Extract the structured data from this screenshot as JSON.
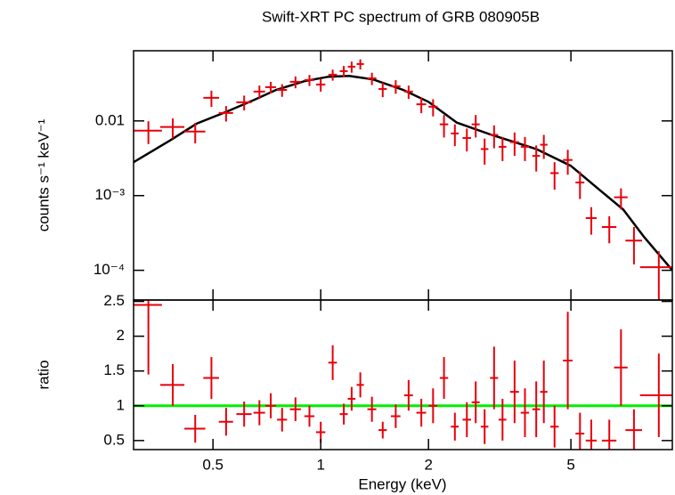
{
  "chart_data": [
    {
      "type": "errorbar",
      "title": "Swift-XRT PC spectrum of GRB 080905B",
      "ylabel": "counts s⁻¹ keV⁻¹",
      "log_x": true,
      "log_y": true,
      "xlim": [
        0.3,
        9.6
      ],
      "ylim": [
        4e-05,
        0.087
      ],
      "yticks": [
        0.01,
        {
          "value": 0.001,
          "label": "10⁻³"
        },
        {
          "value": 0.0001,
          "label": "10⁻⁴"
        }
      ],
      "series": [
        {
          "color": "#e8000b",
          "x": [
            0.33,
            0.386,
            0.446,
            0.495,
            0.544,
            0.611,
            0.674,
            0.725,
            0.78,
            0.85,
            0.93,
            1.0,
            1.08,
            1.16,
            1.22,
            1.29,
            1.39,
            1.49,
            1.62,
            1.76,
            1.91,
            2.06,
            2.21,
            2.37,
            2.56,
            2.71,
            2.87,
            3.05,
            3.22,
            3.48,
            3.72,
            4.0,
            4.2,
            4.5,
            4.9,
            5.3,
            5.7,
            6.4,
            6.9,
            7.5,
            8.8
          ],
          "xerr": [
            0.03,
            0.03,
            0.03,
            0.025,
            0.025,
            0.03,
            0.025,
            0.025,
            0.025,
            0.03,
            0.03,
            0.03,
            0.03,
            0.03,
            0.03,
            0.03,
            0.04,
            0.04,
            0.05,
            0.05,
            0.06,
            0.06,
            0.06,
            0.06,
            0.07,
            0.07,
            0.07,
            0.08,
            0.08,
            0.1,
            0.1,
            0.1,
            0.1,
            0.12,
            0.15,
            0.15,
            0.2,
            0.3,
            0.3,
            0.4,
            1.0
          ],
          "values": [
            0.0074,
            0.0083,
            0.0072,
            0.0204,
            0.0128,
            0.0178,
            0.0247,
            0.0283,
            0.026,
            0.0334,
            0.0353,
            0.0307,
            0.0416,
            0.0464,
            0.0532,
            0.0578,
            0.0372,
            0.0268,
            0.0291,
            0.0247,
            0.0167,
            0.0155,
            0.009,
            0.0068,
            0.0059,
            0.009,
            0.0042,
            0.0065,
            0.0045,
            0.0052,
            0.0045,
            0.0034,
            0.0048,
            0.002,
            0.003,
            0.0015,
            0.0005,
            0.00038,
            0.00095,
            0.00025,
            0.00011
          ],
          "yerr": [
            0.0025,
            0.0025,
            0.0022,
            0.005,
            0.003,
            0.004,
            0.005,
            0.005,
            0.005,
            0.006,
            0.006,
            0.006,
            0.007,
            0.008,
            0.009,
            0.009,
            0.007,
            0.006,
            0.006,
            0.005,
            0.004,
            0.004,
            0.003,
            0.0022,
            0.002,
            0.003,
            0.0016,
            0.0022,
            0.0016,
            0.0018,
            0.0016,
            0.0013,
            0.0017,
            0.0008,
            0.0011,
            0.0006,
            0.0002,
            0.00015,
            0.0003,
            0.00013,
            7e-05
          ]
        }
      ],
      "model": {
        "color": "#000000",
        "x": [
          0.3,
          0.38,
          0.45,
          0.55,
          0.65,
          0.75,
          0.9,
          1.05,
          1.2,
          1.4,
          1.7,
          2.0,
          2.4,
          3.0,
          4.0,
          5.0,
          6.0,
          7.0,
          8.0,
          9.6
        ],
        "values": [
          0.0028,
          0.0055,
          0.0092,
          0.0135,
          0.019,
          0.026,
          0.034,
          0.039,
          0.04,
          0.036,
          0.026,
          0.018,
          0.0095,
          0.0065,
          0.0042,
          0.0025,
          0.0012,
          0.00065,
          0.00028,
          0.0001
        ]
      }
    },
    {
      "type": "errorbar",
      "xlabel": "Energy (keV)",
      "ylabel": "ratio",
      "log_x": true,
      "log_y": false,
      "xlim": [
        0.3,
        9.6
      ],
      "ylim": [
        0.37,
        2.52
      ],
      "xticks": [
        0.5,
        1,
        2,
        5
      ],
      "yticks": [
        0.5,
        1,
        1.5,
        2,
        2.5
      ],
      "reference_line": {
        "value": 1,
        "color": "#00ee00"
      },
      "series": [
        {
          "color": "#e8000b",
          "x": [
            0.33,
            0.386,
            0.446,
            0.495,
            0.544,
            0.611,
            0.674,
            0.725,
            0.78,
            0.85,
            0.93,
            1.0,
            1.08,
            1.16,
            1.22,
            1.29,
            1.39,
            1.49,
            1.62,
            1.76,
            1.91,
            2.06,
            2.21,
            2.37,
            2.56,
            2.71,
            2.87,
            3.05,
            3.22,
            3.48,
            3.72,
            4.0,
            4.2,
            4.5,
            4.9,
            5.3,
            5.7,
            6.4,
            6.9,
            7.5,
            8.8
          ],
          "xerr": [
            0.03,
            0.03,
            0.03,
            0.025,
            0.025,
            0.03,
            0.025,
            0.025,
            0.025,
            0.03,
            0.03,
            0.03,
            0.03,
            0.03,
            0.03,
            0.03,
            0.04,
            0.04,
            0.05,
            0.05,
            0.06,
            0.06,
            0.06,
            0.06,
            0.07,
            0.07,
            0.07,
            0.08,
            0.08,
            0.1,
            0.1,
            0.1,
            0.1,
            0.12,
            0.15,
            0.15,
            0.2,
            0.3,
            0.3,
            0.4,
            1.0
          ],
          "values": [
            2.45,
            1.3,
            0.67,
            1.4,
            0.77,
            0.88,
            0.9,
            1.0,
            0.8,
            0.95,
            0.85,
            0.62,
            1.62,
            0.88,
            1.1,
            1.3,
            0.95,
            0.65,
            0.85,
            1.15,
            0.9,
            1.0,
            1.4,
            0.7,
            0.8,
            1.05,
            0.7,
            1.4,
            0.8,
            1.2,
            0.9,
            0.95,
            1.2,
            0.7,
            1.65,
            0.6,
            0.5,
            0.5,
            1.55,
            0.65,
            1.15
          ],
          "yerr": [
            1.0,
            0.3,
            0.2,
            0.3,
            0.2,
            0.18,
            0.18,
            0.18,
            0.17,
            0.17,
            0.15,
            0.15,
            0.25,
            0.15,
            0.17,
            0.18,
            0.18,
            0.12,
            0.17,
            0.22,
            0.2,
            0.25,
            0.3,
            0.2,
            0.25,
            0.3,
            0.25,
            0.45,
            0.3,
            0.45,
            0.35,
            0.4,
            0.45,
            0.3,
            0.7,
            0.3,
            0.3,
            0.3,
            0.55,
            0.3,
            0.6
          ]
        }
      ]
    }
  ]
}
